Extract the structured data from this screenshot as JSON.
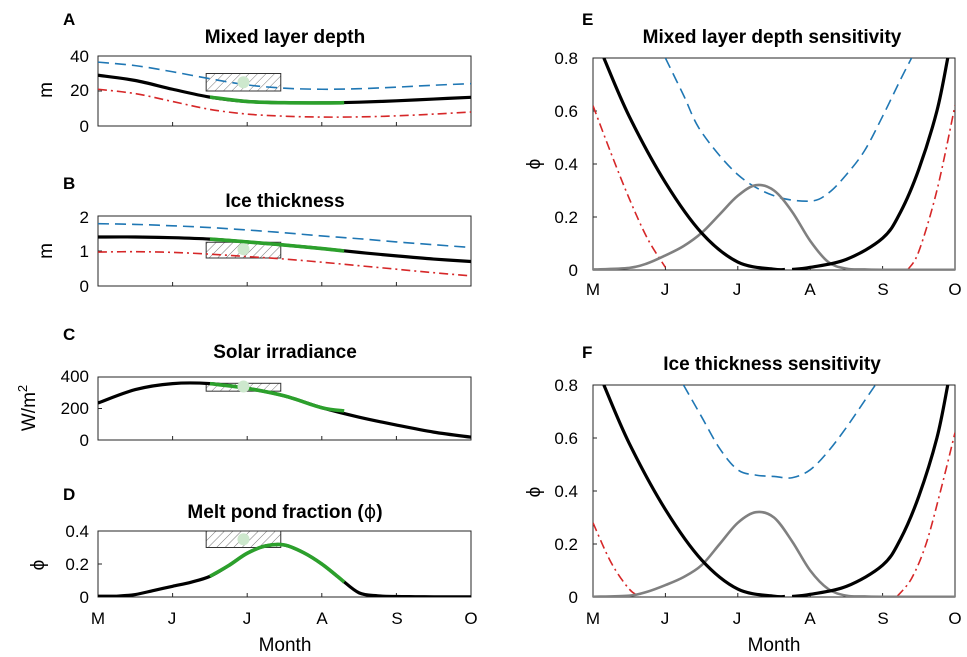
{
  "months": [
    "M",
    "J",
    "J",
    "A",
    "S",
    "O"
  ],
  "panels": {
    "A": {
      "letter": "A",
      "title": "Mixed layer depth",
      "ylabel": "m",
      "yticks": [
        "0",
        "20",
        "40"
      ]
    },
    "B": {
      "letter": "B",
      "title": "Ice thickness",
      "ylabel": "m",
      "yticks": [
        "0",
        "1",
        "2"
      ]
    },
    "C": {
      "letter": "C",
      "title": "Solar irradiance",
      "ylabel": "W/m",
      "ylabel_sup": "2",
      "yticks": [
        "0",
        "200",
        "400"
      ]
    },
    "D": {
      "letter": "D",
      "title_pre": "Melt pond fraction (",
      "title_sym": "ϕ",
      "title_post": ")",
      "ylabel": "ϕ",
      "yticks": [
        "0",
        "0.2",
        "0.4"
      ],
      "xlabel": "Month"
    },
    "E": {
      "letter": "E",
      "title": "Mixed layer depth sensitivity",
      "ylabel": "ϕ",
      "yticks": [
        "0",
        "0.2",
        "0.4",
        "0.6",
        "0.8"
      ]
    },
    "F": {
      "letter": "F",
      "title": "Ice thickness sensitivity",
      "ylabel": "ϕ",
      "yticks": [
        "0",
        "0.2",
        "0.4",
        "0.6",
        "0.8"
      ],
      "xlabel": "Month"
    }
  },
  "colors": {
    "black": "#000000",
    "green": "#2ca02c",
    "blue_dashed": "#1f77b4",
    "red_dashdot": "#d62728",
    "gray": "#808080",
    "marker": "#cde8cd"
  },
  "chart_data": [
    {
      "panel": "A",
      "type": "line",
      "title": "Mixed layer depth",
      "ylabel": "m",
      "x_domain": [
        0,
        5
      ],
      "ylim": [
        0,
        40
      ],
      "series": [
        {
          "style": "baseline",
          "x": [
            0,
            0.5,
            1,
            1.5,
            2,
            2.5,
            3,
            3.5,
            4,
            4.5,
            5
          ],
          "y": [
            29,
            26,
            21,
            16.5,
            14,
            13.3,
            13.2,
            13.6,
            14.4,
            15.4,
            16.4
          ]
        },
        {
          "style": "upper-dashed",
          "x": [
            0,
            0.5,
            1,
            1.5,
            2,
            2.5,
            3,
            3.5,
            4,
            4.5,
            5
          ],
          "y": [
            36.5,
            34.5,
            31,
            27,
            23.5,
            21.6,
            21,
            21.3,
            22.2,
            23.3,
            24.2
          ]
        },
        {
          "style": "lower-dashdot",
          "x": [
            0,
            0.5,
            1,
            1.5,
            2,
            2.5,
            3,
            3.5,
            4,
            4.5,
            5
          ],
          "y": [
            21,
            18.5,
            14,
            9.5,
            6.8,
            5.6,
            5.1,
            5.2,
            5.8,
            6.8,
            8
          ]
        },
        {
          "style": "highlight",
          "x": [
            1.5,
            2,
            2.5,
            3,
            3.3
          ],
          "y": [
            16.5,
            14,
            13.3,
            13.2,
            13.3
          ]
        }
      ],
      "observation": {
        "x": 1.95,
        "y": 25,
        "x_range": [
          1.45,
          2.45
        ],
        "y_range": [
          20,
          30
        ]
      }
    },
    {
      "panel": "B",
      "type": "line",
      "title": "Ice thickness",
      "ylabel": "m",
      "x_domain": [
        0,
        5
      ],
      "ylim": [
        0,
        2
      ],
      "series": [
        {
          "style": "baseline",
          "x": [
            0,
            0.5,
            1,
            1.5,
            2,
            2.5,
            3,
            3.5,
            4,
            4.5,
            5
          ],
          "y": [
            1.4,
            1.4,
            1.38,
            1.34,
            1.26,
            1.17,
            1.07,
            0.96,
            0.86,
            0.77,
            0.7
          ]
        },
        {
          "style": "upper-dashed",
          "x": [
            0,
            0.5,
            1,
            1.5,
            2,
            2.5,
            3,
            3.5,
            4,
            4.5,
            5
          ],
          "y": [
            1.78,
            1.76,
            1.72,
            1.67,
            1.6,
            1.52,
            1.43,
            1.35,
            1.26,
            1.18,
            1.1
          ]
        },
        {
          "style": "lower-dashdot",
          "x": [
            0,
            0.5,
            1,
            1.5,
            2,
            2.5,
            3,
            3.5,
            4,
            4.5,
            5
          ],
          "y": [
            0.97,
            0.98,
            0.96,
            0.91,
            0.84,
            0.77,
            0.68,
            0.58,
            0.48,
            0.38,
            0.29
          ]
        },
        {
          "style": "highlight",
          "x": [
            1.5,
            2,
            2.5,
            3,
            3.3
          ],
          "y": [
            1.34,
            1.26,
            1.17,
            1.07,
            1.0
          ]
        }
      ],
      "observation": {
        "x": 1.95,
        "y": 1.05,
        "x_range": [
          1.45,
          2.45
        ],
        "y_range": [
          0.8,
          1.25
        ]
      }
    },
    {
      "panel": "C",
      "type": "line",
      "title": "Solar irradiance",
      "ylabel": "W/m2",
      "x_domain": [
        0,
        5
      ],
      "ylim": [
        0,
        400
      ],
      "series": [
        {
          "style": "baseline",
          "x": [
            0,
            0.5,
            1,
            1.5,
            2,
            2.5,
            3,
            3.5,
            4,
            4.5,
            5
          ],
          "y": [
            235,
            320,
            358,
            358,
            328,
            280,
            205,
            145,
            95,
            50,
            18
          ]
        },
        {
          "style": "highlight",
          "x": [
            1.5,
            2,
            2.5,
            3,
            3.3
          ],
          "y": [
            358,
            328,
            280,
            205,
            185
          ]
        }
      ],
      "observation": {
        "x": 1.95,
        "y": 340,
        "x_range": [
          1.45,
          2.45
        ],
        "y_range": [
          310,
          360
        ]
      }
    },
    {
      "panel": "D",
      "type": "line",
      "title": "Melt pond fraction (ϕ)",
      "xlabel": "Month",
      "ylabel": "ϕ",
      "x_domain": [
        0,
        5
      ],
      "ylim": [
        0,
        0.4
      ],
      "series": [
        {
          "style": "baseline",
          "x": [
            0,
            0.25,
            0.5,
            0.75,
            1,
            1.25,
            1.5,
            1.75,
            2,
            2.25,
            2.5,
            2.75,
            3,
            3.25,
            3.5,
            3.75,
            4,
            4.25,
            4.5,
            4.75,
            5
          ],
          "y": [
            0.005,
            0.005,
            0.015,
            0.04,
            0.065,
            0.09,
            0.125,
            0.19,
            0.265,
            0.31,
            0.315,
            0.27,
            0.2,
            0.11,
            0.025,
            0.007,
            0.003,
            0.002,
            0.001,
            0.001,
            0.001
          ]
        },
        {
          "style": "highlight",
          "x": [
            1.5,
            1.75,
            2,
            2.25,
            2.5,
            2.75,
            3,
            3.25,
            3.3
          ],
          "y": [
            0.125,
            0.19,
            0.265,
            0.31,
            0.315,
            0.27,
            0.2,
            0.11,
            0.09
          ]
        }
      ],
      "observation": {
        "x": 1.95,
        "y": 0.35,
        "x_range": [
          1.45,
          2.45
        ],
        "y_range": [
          0.3,
          0.4
        ]
      }
    },
    {
      "panel": "E",
      "type": "line",
      "title": "Mixed layer depth sensitivity",
      "ylabel": "ϕ",
      "x_domain": [
        0,
        5
      ],
      "ylim": [
        0,
        0.8
      ],
      "series": [
        {
          "style": "gray",
          "x": [
            0,
            0.5,
            0.75,
            1,
            1.25,
            1.5,
            1.75,
            2,
            2.25,
            2.5,
            2.75,
            3,
            3.25,
            3.5,
            3.75,
            4,
            5
          ],
          "y": [
            0.002,
            0.008,
            0.025,
            0.055,
            0.09,
            0.14,
            0.21,
            0.28,
            0.32,
            0.3,
            0.22,
            0.11,
            0.03,
            0.005,
            0.002,
            0.001,
            0.001
          ]
        },
        {
          "style": "baseline",
          "x": [
            0.15,
            0.5,
            1,
            1.5,
            2,
            2.5,
            2.65
          ],
          "y": [
            0.8,
            0.58,
            0.33,
            0.14,
            0.03,
            0.003,
            0.002
          ]
        },
        {
          "style": "baseline",
          "x": [
            2.75,
            3,
            3.5,
            4,
            4.25,
            4.5,
            4.75,
            4.9
          ],
          "y": [
            0.002,
            0.01,
            0.04,
            0.12,
            0.22,
            0.38,
            0.6,
            0.8
          ]
        },
        {
          "style": "upper-dashed",
          "x": [
            1.0,
            1.25,
            1.5,
            2,
            2.5,
            3,
            3.25,
            3.5,
            3.75,
            4,
            4.25,
            4.4
          ],
          "y": [
            0.8,
            0.66,
            0.52,
            0.36,
            0.28,
            0.26,
            0.29,
            0.36,
            0.45,
            0.58,
            0.72,
            0.8
          ]
        },
        {
          "style": "lower-dashdot",
          "x": [
            0,
            0.25,
            0.5,
            0.75,
            1.0
          ],
          "y": [
            0.62,
            0.44,
            0.27,
            0.12,
            0.01
          ]
        },
        {
          "style": "lower-dashdot",
          "x": [
            4.35,
            4.5,
            4.75,
            5
          ],
          "y": [
            0.002,
            0.07,
            0.3,
            0.62
          ]
        }
      ]
    },
    {
      "panel": "F",
      "type": "line",
      "title": "Ice thickness sensitivity",
      "xlabel": "Month",
      "ylabel": "ϕ",
      "x_domain": [
        0,
        5
      ],
      "ylim": [
        0,
        0.8
      ],
      "series": [
        {
          "style": "gray",
          "x": [
            0,
            0.5,
            0.75,
            1,
            1.25,
            1.5,
            1.75,
            2,
            2.25,
            2.5,
            2.75,
            3,
            3.25,
            3.5,
            3.75,
            4,
            5
          ],
          "y": [
            0.001,
            0.005,
            0.02,
            0.045,
            0.075,
            0.12,
            0.2,
            0.28,
            0.32,
            0.3,
            0.21,
            0.1,
            0.03,
            0.005,
            0.002,
            0.001,
            0.001
          ]
        },
        {
          "style": "baseline",
          "x": [
            0.15,
            0.5,
            1,
            1.5,
            2,
            2.5,
            2.65
          ],
          "y": [
            0.8,
            0.58,
            0.33,
            0.14,
            0.03,
            0.003,
            0.002
          ]
        },
        {
          "style": "baseline",
          "x": [
            2.75,
            3,
            3.5,
            4,
            4.25,
            4.5,
            4.75,
            4.9
          ],
          "y": [
            0.002,
            0.01,
            0.04,
            0.12,
            0.22,
            0.38,
            0.6,
            0.8
          ]
        },
        {
          "style": "upper-dashed",
          "x": [
            1.25,
            1.5,
            1.75,
            2,
            2.25,
            2.5,
            2.75,
            3,
            3.25,
            3.5,
            3.75,
            3.9
          ],
          "y": [
            0.8,
            0.68,
            0.56,
            0.48,
            0.46,
            0.455,
            0.45,
            0.48,
            0.55,
            0.64,
            0.74,
            0.8
          ]
        },
        {
          "style": "lower-dashdot",
          "x": [
            0,
            0.25,
            0.5,
            0.65
          ],
          "y": [
            0.28,
            0.13,
            0.03,
            0.002
          ]
        },
        {
          "style": "lower-dashdot",
          "x": [
            4.2,
            4.4,
            4.6,
            4.8,
            5
          ],
          "y": [
            0.002,
            0.07,
            0.2,
            0.4,
            0.62
          ]
        }
      ]
    }
  ]
}
